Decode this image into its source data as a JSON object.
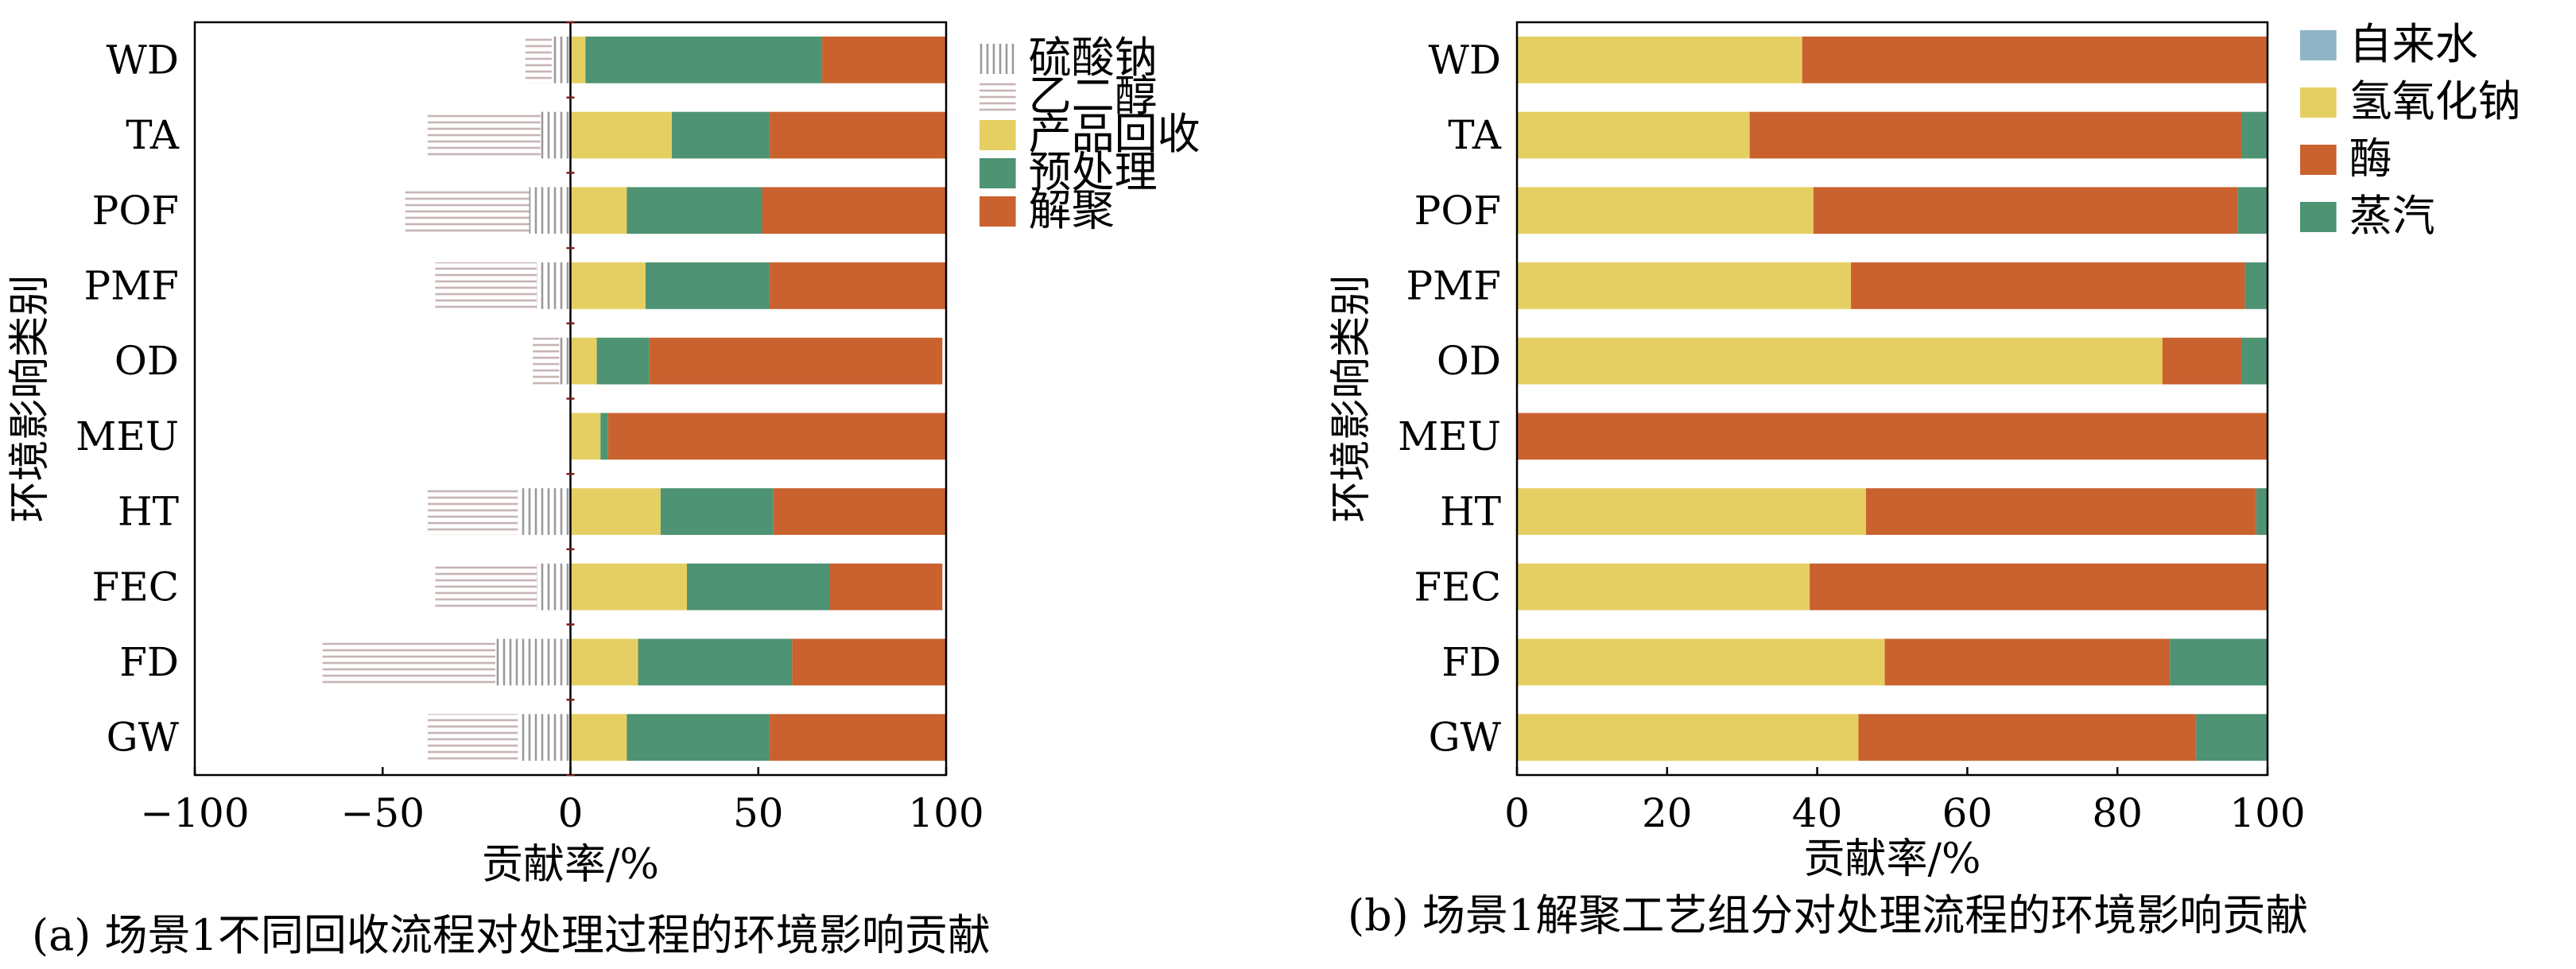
{
  "chart_data": [
    {
      "type": "bar",
      "orientation": "horizontal",
      "stacked": true,
      "caption": "(a) 场景1不同回收流程对处理过程的环境影响贡献",
      "xlabel": "贡献率/%",
      "ylabel": "环境影响类别",
      "xlim": [
        -100,
        100
      ],
      "xticks": [
        "−100",
        "−50",
        "0",
        "50",
        "100"
      ],
      "categories": [
        "WD",
        "TA",
        "POF",
        "PMF",
        "OD",
        "MEU",
        "HT",
        "FEC",
        "FD",
        "GW"
      ],
      "legend_position": "right",
      "series": [
        {
          "name": "硫酸钠",
          "color": "#b9b9b9",
          "pattern": "vertical-lines",
          "values": [
            -5,
            -8,
            -11,
            -9,
            -3,
            0,
            -14,
            -9,
            -20,
            -14
          ]
        },
        {
          "name": "乙二醇",
          "color": "#d8c4c4",
          "pattern": "horizontal-lines",
          "values": [
            -7,
            -30,
            -33,
            -27,
            -7,
            0,
            -24,
            -27,
            -46,
            -24
          ]
        },
        {
          "name": "产品回收",
          "color": "#e6cf62",
          "values": [
            4,
            27,
            15,
            20,
            7,
            8,
            24,
            31,
            18,
            15
          ]
        },
        {
          "name": "预处理",
          "color": "#4e9373",
          "values": [
            63,
            26,
            36,
            33,
            14,
            2,
            30,
            38,
            41,
            38
          ]
        },
        {
          "name": "解聚",
          "color": "#c9622f",
          "values": [
            33,
            47,
            49,
            47,
            78,
            90,
            46,
            30,
            41,
            47
          ]
        }
      ]
    },
    {
      "type": "bar",
      "orientation": "horizontal",
      "stacked": true,
      "caption": "(b) 场景1解聚工艺组分对处理流程的环境影响贡献",
      "xlabel": "贡献率/%",
      "ylabel": "环境影响类别",
      "xlim": [
        0,
        100
      ],
      "xticks": [
        "0",
        "20",
        "40",
        "60",
        "80",
        "100"
      ],
      "categories": [
        "WD",
        "TA",
        "POF",
        "PMF",
        "OD",
        "MEU",
        "HT",
        "FEC",
        "FD",
        "GW"
      ],
      "legend_position": "right",
      "series": [
        {
          "name": "自来水",
          "color": "#8fb4c6",
          "values": [
            0,
            0,
            0,
            0,
            0,
            0,
            0,
            0,
            0,
            0
          ]
        },
        {
          "name": "氢氧化钠",
          "color": "#e6cf62",
          "values": [
            38,
            31,
            39.5,
            44.5,
            86,
            0,
            46.5,
            39,
            49,
            45.5
          ]
        },
        {
          "name": "酶",
          "color": "#c9622f",
          "values": [
            62,
            65.5,
            56.5,
            52.5,
            10.5,
            100,
            52,
            61,
            38,
            45
          ]
        },
        {
          "name": "蒸汽",
          "color": "#4e9373",
          "values": [
            0,
            3.5,
            4,
            3,
            3.5,
            0,
            1.5,
            0,
            13,
            9.5
          ]
        }
      ]
    }
  ]
}
